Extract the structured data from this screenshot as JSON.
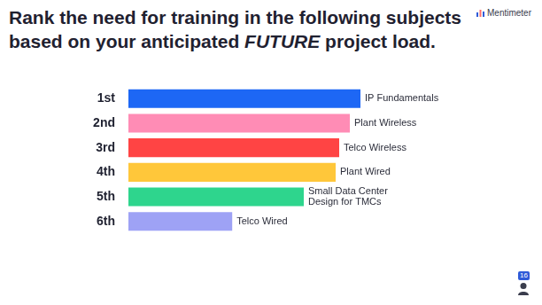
{
  "chart_data": {
    "type": "bar",
    "orientation": "horizontal",
    "title": "Rank the need for training in the following subjects based on your anticipated FUTURE project load.",
    "title_emphasis": "FUTURE",
    "categories": [
      "1st",
      "2nd",
      "3rd",
      "4th",
      "5th",
      "6th"
    ],
    "values": [
      65.5,
      62.5,
      59.5,
      58.5,
      49.5,
      29.3
    ],
    "items": [
      "IP Fundamentals",
      "Plant Wireless",
      "Telco Wireless",
      "Plant Wired",
      "Small Data Center Design for TMCs",
      "Telco Wired"
    ],
    "colors": [
      "#1d67f5",
      "#ff8cb5",
      "#ff4444",
      "#ffc73a",
      "#2ed58d",
      "#9ea2f5"
    ],
    "xlim": [
      0,
      100
    ],
    "grid": false,
    "tick_labels": "y",
    "brand": "Mentimeter",
    "participants": 16
  }
}
